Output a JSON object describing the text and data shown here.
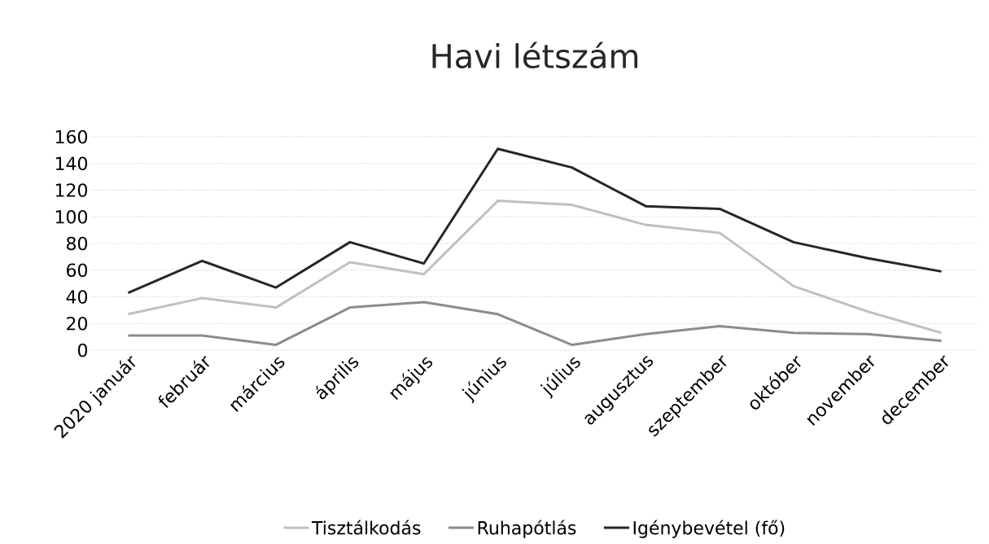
{
  "chart_data": {
    "type": "line",
    "title": "Havi létszám",
    "categories": [
      "2020 január",
      "február",
      "március",
      "április",
      "május",
      "június",
      "július",
      "augusztus",
      "szeptember",
      "október",
      "november",
      "december"
    ],
    "series": [
      {
        "name": "Tisztálkodás",
        "color": "#c0c0c0",
        "values": [
          27,
          39,
          32,
          66,
          57,
          112,
          109,
          94,
          88,
          48,
          29,
          13
        ]
      },
      {
        "name": "Ruhapótlás",
        "color": "#8c8c8c",
        "values": [
          11,
          11,
          4,
          32,
          36,
          27,
          4,
          12,
          18,
          13,
          12,
          7
        ]
      },
      {
        "name": "Igénybevétel (fő)",
        "color": "#262626",
        "values": [
          43,
          67,
          47,
          81,
          65,
          151,
          137,
          108,
          106,
          81,
          69,
          59
        ]
      }
    ],
    "ylim": [
      0,
      160
    ],
    "yticks": [
      0,
      20,
      40,
      60,
      80,
      100,
      120,
      140,
      160
    ],
    "grid": "y",
    "legend": "bottom",
    "marker": "none",
    "line_style": "solid"
  }
}
